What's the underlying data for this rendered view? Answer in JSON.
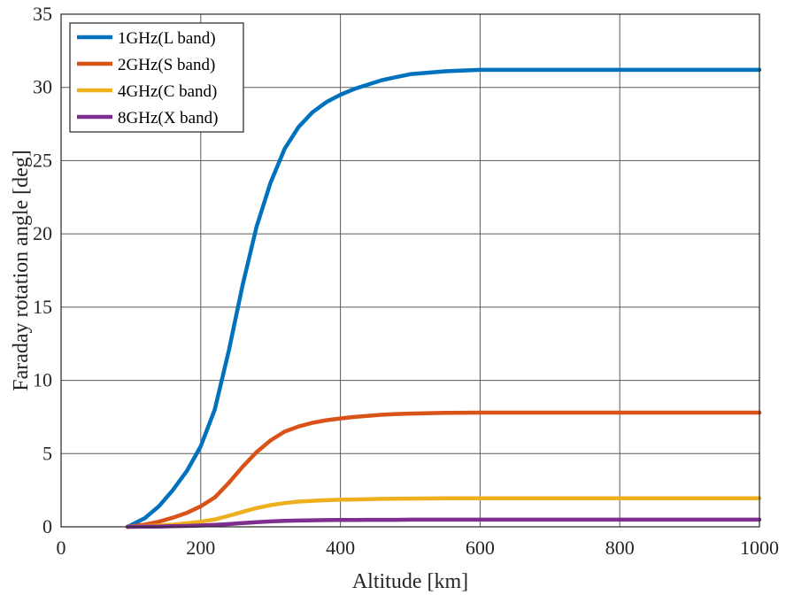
{
  "chart_data": {
    "type": "line",
    "title": "",
    "xlabel": "Altitude [km]",
    "ylabel": "Faraday rotation angle [deg]",
    "xlim": [
      0,
      1000
    ],
    "ylim": [
      0,
      35
    ],
    "xticks": [
      0,
      200,
      400,
      600,
      800,
      1000
    ],
    "yticks": [
      0,
      5,
      10,
      15,
      20,
      25,
      30,
      35
    ],
    "grid": true,
    "legend_position": "top-left",
    "x": [
      95,
      100,
      120,
      140,
      160,
      180,
      200,
      220,
      240,
      260,
      280,
      300,
      320,
      340,
      360,
      380,
      400,
      420,
      440,
      460,
      480,
      500,
      550,
      600,
      650,
      700,
      800,
      900,
      1000
    ],
    "series": [
      {
        "name": "1GHz(L band)",
        "color": "#0072BD",
        "values": [
          0.0,
          0.1,
          0.6,
          1.4,
          2.5,
          3.8,
          5.5,
          8.0,
          12.0,
          16.5,
          20.5,
          23.5,
          25.8,
          27.3,
          28.3,
          29.0,
          29.5,
          29.9,
          30.2,
          30.5,
          30.7,
          30.9,
          31.1,
          31.2,
          31.2,
          31.2,
          31.2,
          31.2,
          31.2
        ]
      },
      {
        "name": "2GHz(S band)",
        "color": "#D95319",
        "values": [
          0.0,
          0.03,
          0.15,
          0.35,
          0.62,
          0.95,
          1.4,
          2.0,
          3.0,
          4.1,
          5.1,
          5.9,
          6.5,
          6.85,
          7.1,
          7.28,
          7.4,
          7.5,
          7.58,
          7.65,
          7.7,
          7.73,
          7.78,
          7.8,
          7.8,
          7.8,
          7.8,
          7.8,
          7.8
        ]
      },
      {
        "name": "4GHz(C band)",
        "color": "#EDB120",
        "values": [
          0.0,
          0.01,
          0.04,
          0.09,
          0.15,
          0.24,
          0.35,
          0.5,
          0.75,
          1.02,
          1.28,
          1.48,
          1.62,
          1.72,
          1.78,
          1.82,
          1.85,
          1.87,
          1.89,
          1.91,
          1.92,
          1.93,
          1.95,
          1.95,
          1.95,
          1.95,
          1.95,
          1.95,
          1.95
        ]
      },
      {
        "name": "8GHz(X band)",
        "color": "#7E2F8E",
        "values": [
          0.0,
          0.0,
          0.01,
          0.02,
          0.04,
          0.06,
          0.09,
          0.13,
          0.19,
          0.26,
          0.32,
          0.37,
          0.41,
          0.43,
          0.45,
          0.46,
          0.47,
          0.47,
          0.48,
          0.48,
          0.48,
          0.49,
          0.49,
          0.49,
          0.49,
          0.49,
          0.49,
          0.49,
          0.49
        ]
      }
    ]
  }
}
